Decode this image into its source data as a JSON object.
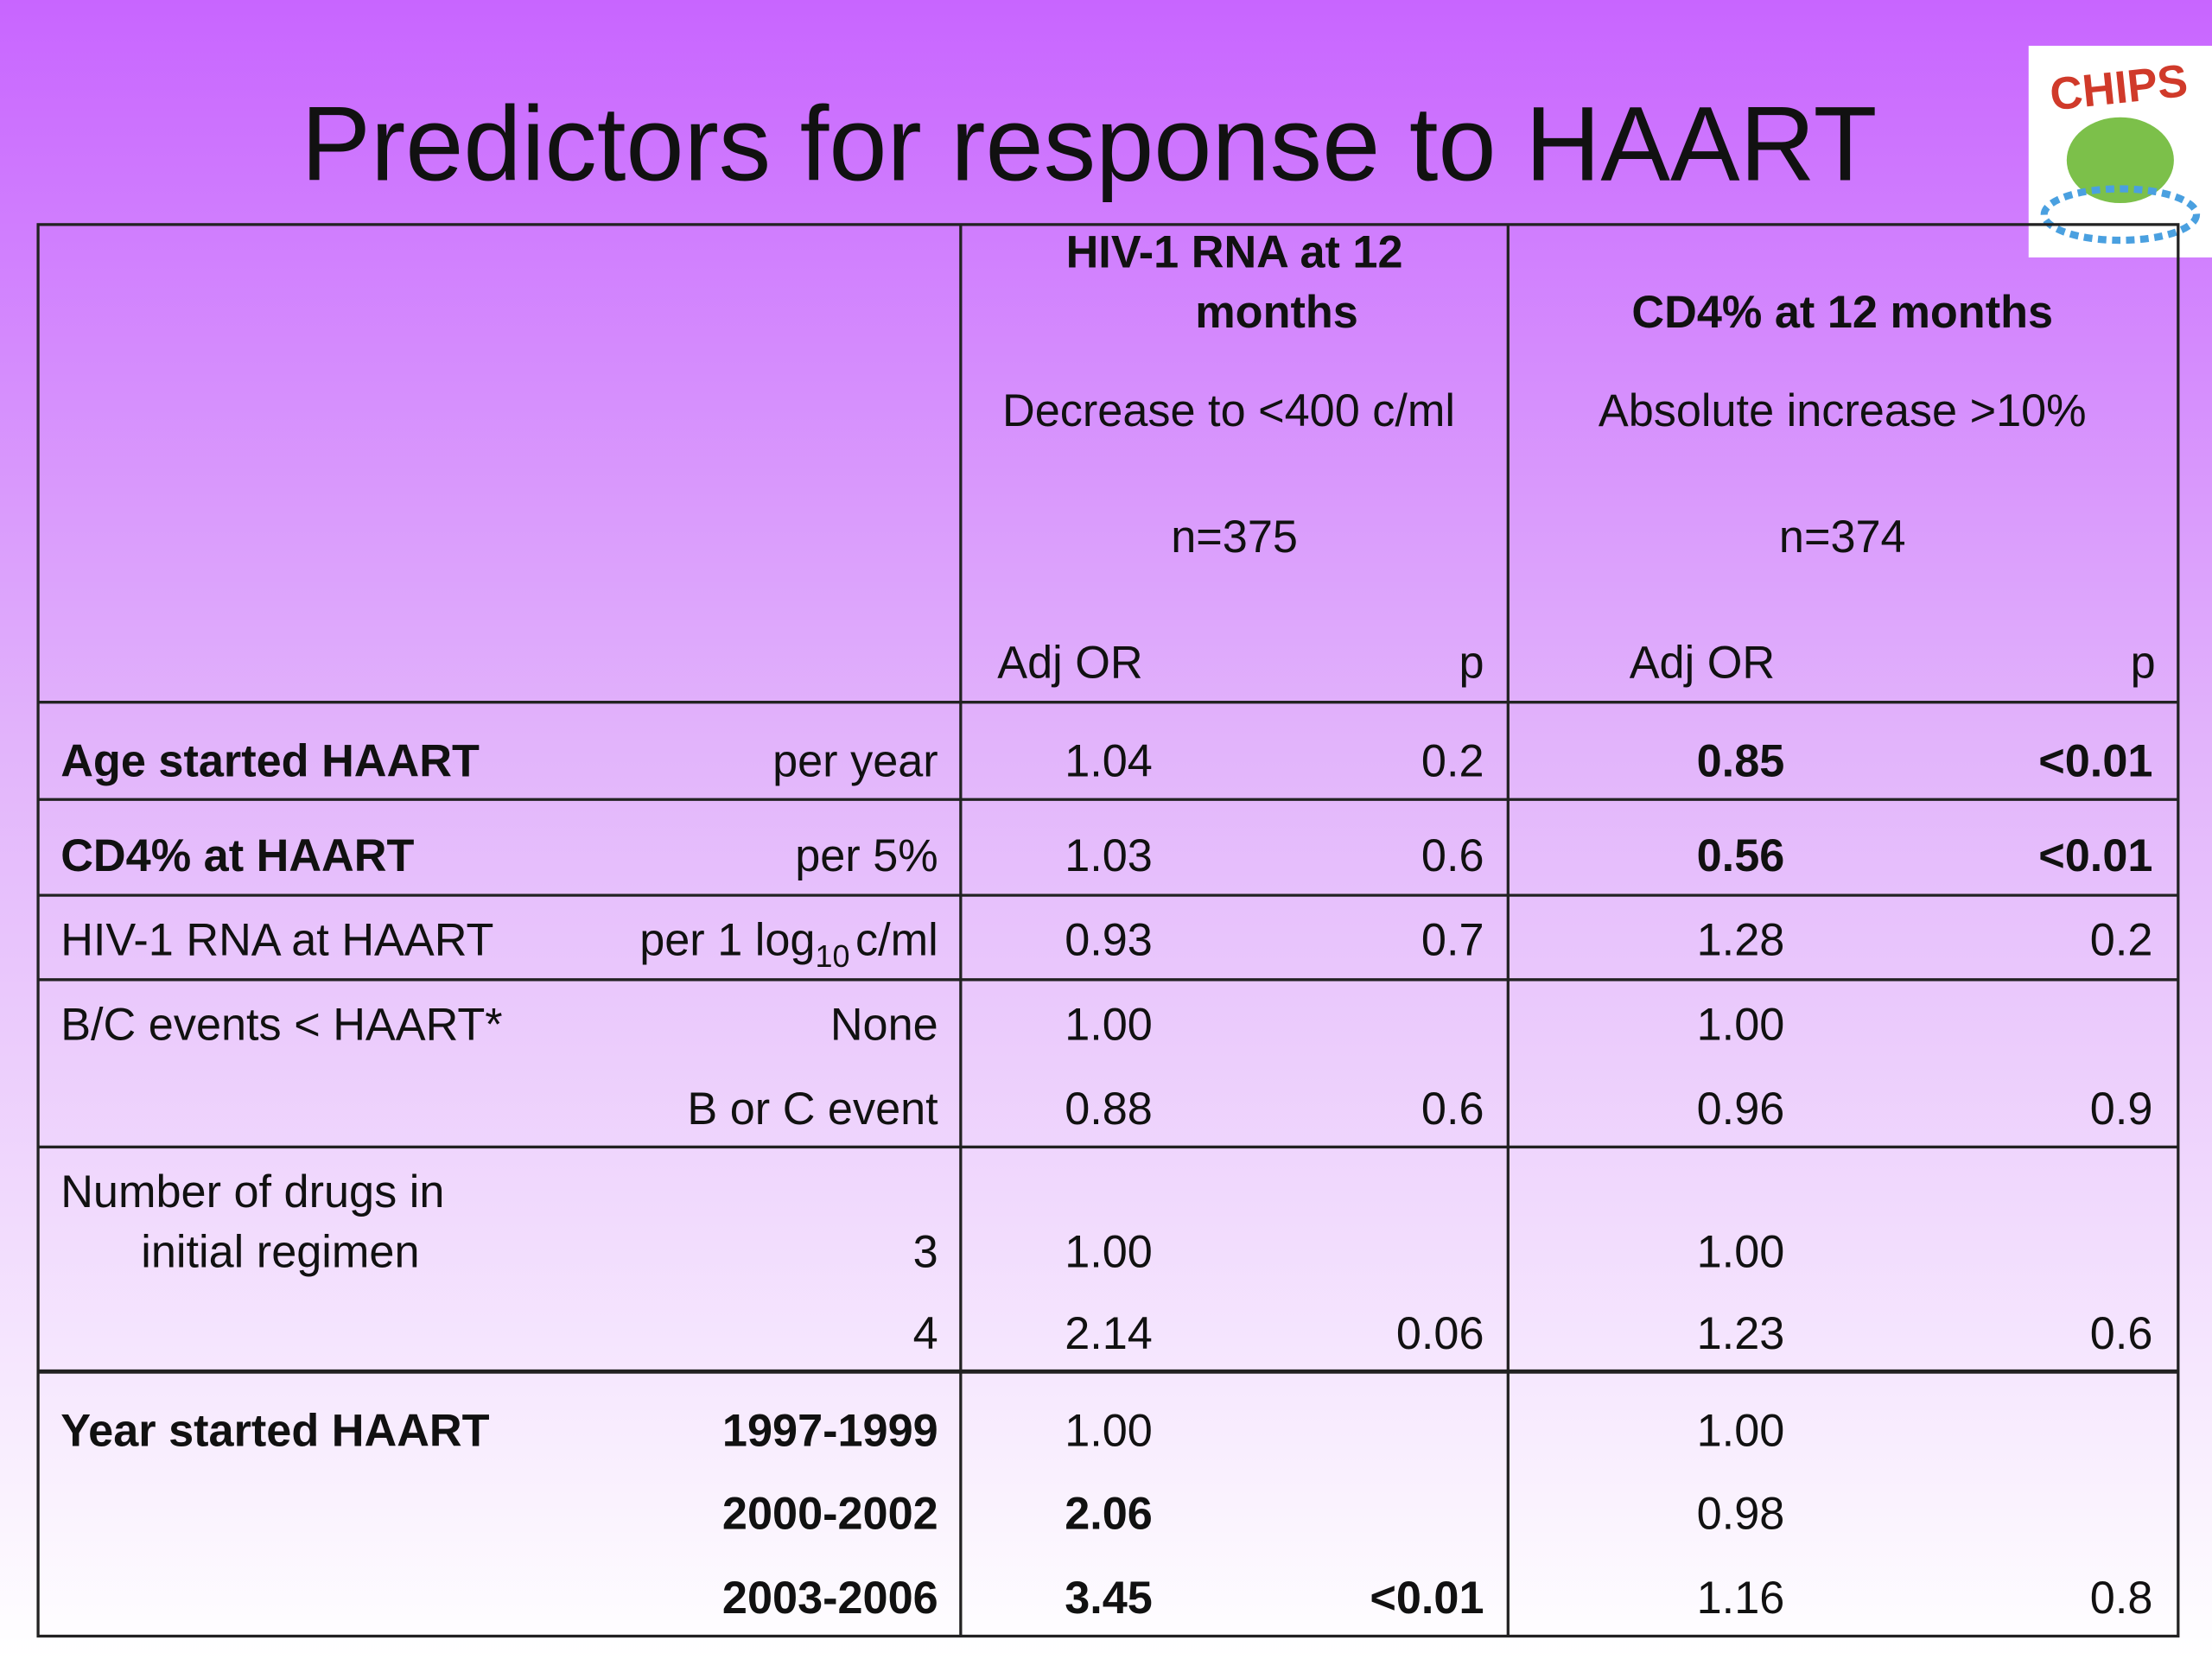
{
  "title": "Predictors for response to HAART",
  "logo": "CHIPS",
  "header": {
    "columns": [
      {
        "title_lines": [
          "HIV-1 RNA at 12",
          "months"
        ],
        "subtitle": "Decrease to <400 c/ml",
        "n": "n=375",
        "or": "Adj OR",
        "p": "p"
      },
      {
        "title_lines": [
          "CD4% at 12 months"
        ],
        "subtitle": "Absolute increase >10%",
        "n": "n=374",
        "or": "Adj OR",
        "p": "p"
      }
    ]
  },
  "rows": [
    {
      "label_lines": [
        "Age started HAART"
      ],
      "label_bold": true,
      "lines": [
        {
          "cells": [
            "per year",
            "1.04",
            "0.2",
            "0.85",
            "<0.01"
          ],
          "bold": [
            false,
            false,
            false,
            true,
            true
          ]
        }
      ]
    },
    {
      "label_lines": [
        "CD4% at HAART"
      ],
      "label_bold": true,
      "lines": [
        {
          "cells": [
            "per 5%",
            "1.03",
            "0.6",
            "0.56",
            "<0.01"
          ],
          "bold": [
            false,
            false,
            false,
            true,
            true
          ]
        }
      ]
    },
    {
      "label_lines": [
        "HIV-1 RNA at HAART"
      ],
      "label_bold": false,
      "lines": [
        {
          "cells": [
            {
              "text": "per 1 log",
              "sub": "10",
              "after": "c/ml"
            },
            "0.93",
            "0.7",
            "1.28",
            "0.2"
          ],
          "bold": [
            false,
            false,
            false,
            false,
            false
          ]
        }
      ]
    },
    {
      "label_lines": [
        "B/C events < HAART*"
      ],
      "label_bold": false,
      "lines": [
        {
          "cells": [
            "None",
            "1.00",
            null,
            "1.00",
            null
          ],
          "bold": [
            false,
            false,
            false,
            false,
            false
          ]
        },
        {
          "cells": [
            "B or C event",
            "0.88",
            "0.6",
            "0.96",
            "0.9"
          ],
          "bold": [
            false,
            false,
            false,
            false,
            false
          ]
        }
      ]
    },
    {
      "label_lines": [
        "Number of drugs in",
        "initial regimen"
      ],
      "label_bold": false,
      "lines": [
        {
          "cells": [
            "3",
            "1.00",
            null,
            "1.00",
            null
          ],
          "bold": [
            false,
            false,
            false,
            false,
            false
          ]
        },
        {
          "cells": [
            "4",
            "2.14",
            "0.06",
            "1.23",
            "0.6"
          ],
          "bold": [
            false,
            false,
            false,
            false,
            false
          ]
        }
      ]
    },
    {
      "label_lines": [
        "Year started HAART"
      ],
      "label_bold": true,
      "lines": [
        {
          "cells": [
            "1997-1999",
            "1.00",
            null,
            "1.00",
            null
          ],
          "bold": [
            true,
            false,
            false,
            false,
            false
          ]
        },
        {
          "cells": [
            "2000-2002",
            "2.06",
            null,
            "0.98",
            null
          ],
          "bold": [
            true,
            true,
            false,
            false,
            false
          ]
        },
        {
          "cells": [
            "2003-2006",
            "3.45",
            "<0.01",
            "1.16",
            "0.8"
          ],
          "bold": [
            true,
            true,
            true,
            false,
            false
          ]
        }
      ]
    }
  ]
}
